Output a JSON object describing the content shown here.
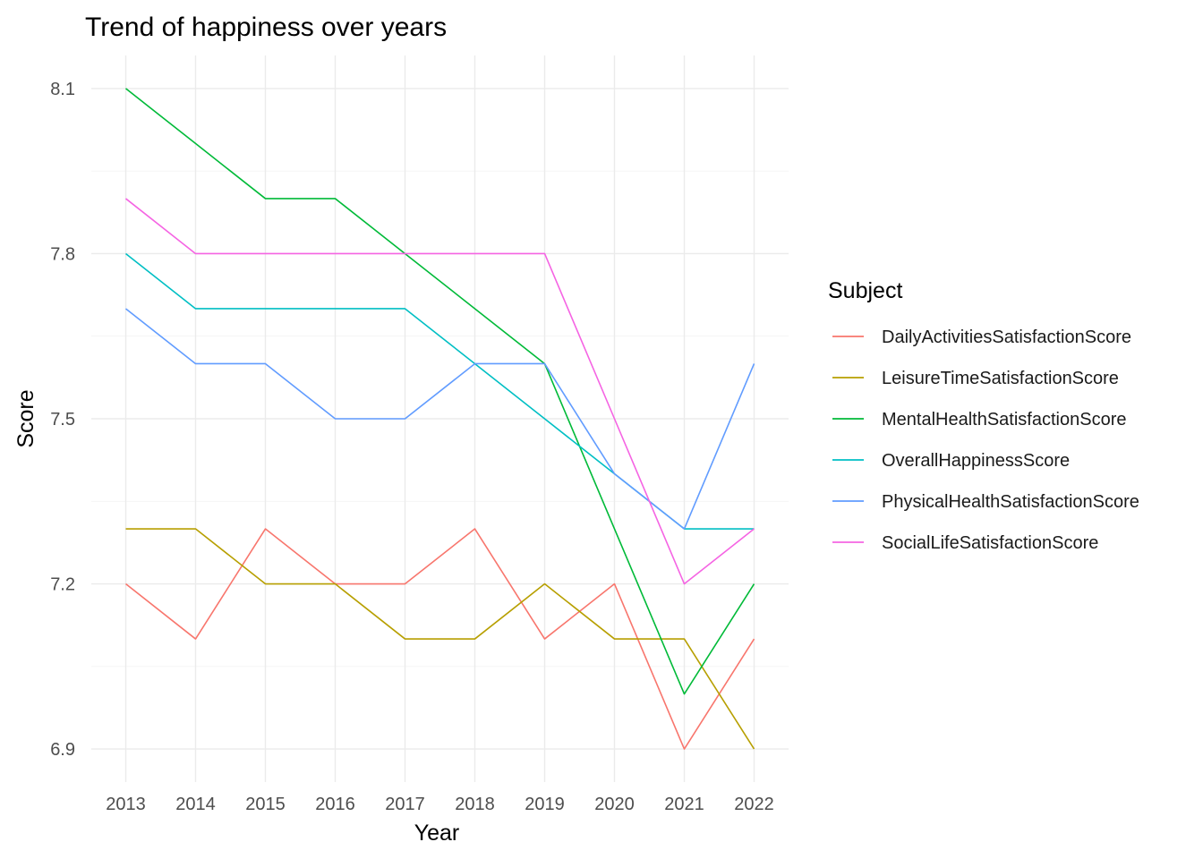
{
  "chart_data": {
    "type": "line",
    "title": "Trend of happiness over years",
    "xlabel": "Year",
    "ylabel": "Score",
    "x": [
      2013,
      2014,
      2015,
      2016,
      2017,
      2018,
      2019,
      2020,
      2021,
      2022
    ],
    "ylim": [
      6.84,
      8.16
    ],
    "yticks": [
      6.9,
      7.2,
      7.5,
      7.8,
      8.1
    ],
    "ytick_labels": [
      "6.9",
      "7.2",
      "7.5",
      "7.8",
      "8.1"
    ],
    "grid": true,
    "legend": {
      "title": "Subject",
      "position": "right"
    },
    "series": [
      {
        "name": "DailyActivitiesSatisfactionScore",
        "color": "#F8766D",
        "values": [
          7.2,
          7.1,
          7.3,
          7.2,
          7.2,
          7.3,
          7.1,
          7.2,
          6.9,
          7.1
        ]
      },
      {
        "name": "LeisureTimeSatisfactionScore",
        "color": "#B79F00",
        "values": [
          7.3,
          7.3,
          7.2,
          7.2,
          7.1,
          7.1,
          7.2,
          7.1,
          7.1,
          6.9
        ]
      },
      {
        "name": "MentalHealthSatisfactionScore",
        "color": "#00BA38",
        "values": [
          8.1,
          8.0,
          7.9,
          7.9,
          7.8,
          7.7,
          7.6,
          7.3,
          7.0,
          7.2
        ]
      },
      {
        "name": "OverallHappinessScore",
        "color": "#00BFC4",
        "values": [
          7.8,
          7.7,
          7.7,
          7.7,
          7.7,
          7.6,
          7.5,
          7.4,
          7.3,
          7.3
        ]
      },
      {
        "name": "PhysicalHealthSatisfactionScore",
        "color": "#619CFF",
        "values": [
          7.7,
          7.6,
          7.6,
          7.5,
          7.5,
          7.6,
          7.6,
          7.4,
          7.3,
          7.6
        ]
      },
      {
        "name": "SocialLifeSatisfactionScore",
        "color": "#F564E3",
        "values": [
          7.9,
          7.8,
          7.8,
          7.8,
          7.8,
          7.8,
          7.8,
          7.5,
          7.2,
          7.3
        ]
      }
    ]
  }
}
